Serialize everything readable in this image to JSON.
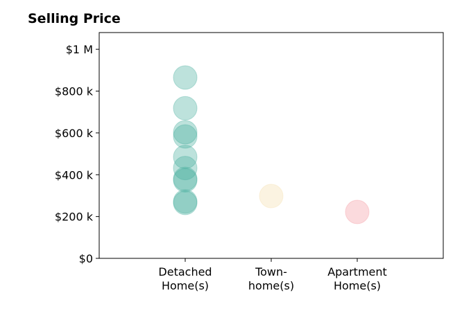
{
  "chart_data": {
    "type": "scatter",
    "title": "Selling Price",
    "xlabel": "",
    "ylabel": "",
    "categories": [
      [
        "Detached",
        "Home(s)"
      ],
      [
        "Town-",
        "home(s)"
      ],
      [
        "Apartment",
        "Home(s)"
      ]
    ],
    "xlim": [
      0,
      4
    ],
    "ylim": [
      0,
      1000000
    ],
    "ymax_plot": 1080000,
    "yticks": [
      {
        "value": 0,
        "label": "$0"
      },
      {
        "value": 200000,
        "label": "$200 k"
      },
      {
        "value": 400000,
        "label": "$400 k"
      },
      {
        "value": 600000,
        "label": "$600 k"
      },
      {
        "value": 800000,
        "label": "$800 k"
      },
      {
        "value": 1000000,
        "label": "$1 M"
      }
    ],
    "grid": false,
    "series": [
      {
        "category": 1,
        "color": "#41ab9b",
        "values": [
          865000,
          718000,
          603000,
          583000,
          485000,
          432000,
          380000,
          373000,
          272000,
          265000
        ]
      },
      {
        "category": 2,
        "color": "#f3ddaa",
        "values": [
          298000
        ]
      },
      {
        "category": 3,
        "color": "#f4949e",
        "values": [
          222000
        ]
      }
    ],
    "marker_opacity": 0.35
  }
}
